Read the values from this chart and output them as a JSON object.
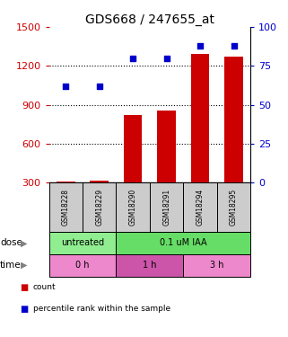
{
  "title": "GDS668 / 247655_at",
  "samples": [
    "GSM18228",
    "GSM18229",
    "GSM18290",
    "GSM18291",
    "GSM18294",
    "GSM18295"
  ],
  "bar_values": [
    310,
    320,
    820,
    855,
    1290,
    1270
  ],
  "percentile_values": [
    62,
    62,
    80,
    80,
    88,
    88
  ],
  "bar_color": "#cc0000",
  "dot_color": "#0000cc",
  "ylim_left": [
    300,
    1500
  ],
  "ylim_right": [
    0,
    100
  ],
  "yticks_left": [
    300,
    600,
    900,
    1200,
    1500
  ],
  "yticks_right": [
    0,
    25,
    50,
    75,
    100
  ],
  "dose_labels": [
    {
      "label": "untreated",
      "span": [
        0,
        2
      ],
      "color": "#90ee90"
    },
    {
      "label": "0.1 uM IAA",
      "span": [
        2,
        6
      ],
      "color": "#66dd66"
    }
  ],
  "time_labels": [
    {
      "label": "0 h",
      "span": [
        0,
        2
      ],
      "color": "#ee88cc"
    },
    {
      "label": "1 h",
      "span": [
        2,
        4
      ],
      "color": "#cc55aa"
    },
    {
      "label": "3 h",
      "span": [
        4,
        6
      ],
      "color": "#ee88cc"
    }
  ],
  "sample_box_color": "#cccccc",
  "title_fontsize": 10,
  "axis_label_color_left": "#cc0000",
  "axis_label_color_right": "#0000cc",
  "legend_items": [
    {
      "color": "#cc0000",
      "label": "count"
    },
    {
      "color": "#0000cc",
      "label": "percentile rank within the sample"
    }
  ]
}
